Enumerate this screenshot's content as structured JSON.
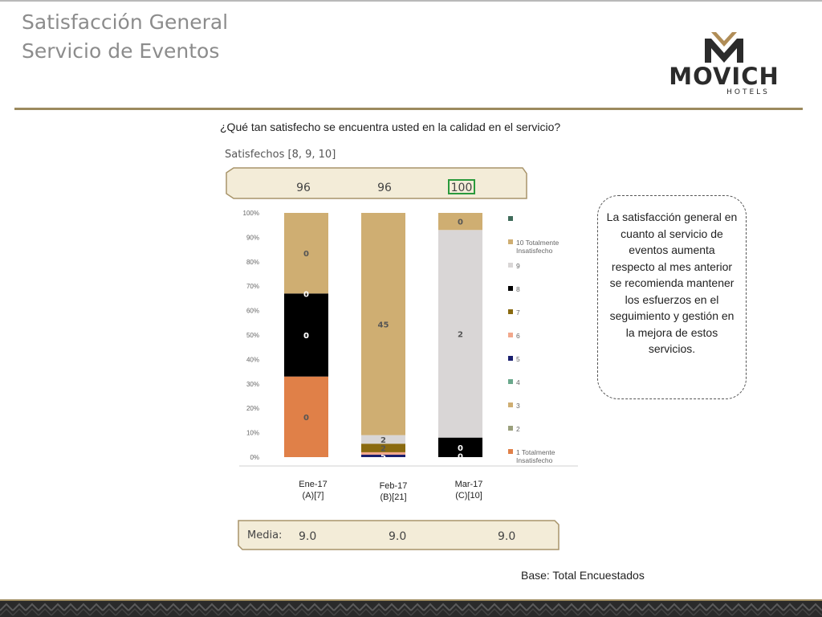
{
  "header": {
    "title_line1": "Satisfacción General",
    "title_line2": "Servicio de Eventos"
  },
  "logo": {
    "name": "MOVICH",
    "sub": "HOTELS",
    "colors": {
      "gold": "#b08d57",
      "dark": "#2b2b2b"
    }
  },
  "question": "¿Qué tan satisfecho se encuentra usted en la calidad en el servicio?",
  "satisfied": {
    "label": "Satisfechos [8, 9, 10]",
    "values": [
      "96",
      "96",
      "100"
    ]
  },
  "note": "La satisfacción general en cuanto al servicio de eventos aumenta respecto al mes anterior  se recomienda mantener los esfuerzos en el seguimiento y gestión en la mejora de estos servicios.",
  "media": {
    "label": "Media:",
    "values": [
      "9.0",
      "9.0",
      "9.0"
    ]
  },
  "base": "Base: Total Encuestados",
  "chart_data": {
    "type": "bar",
    "stacked": true,
    "x_categories": [
      {
        "line1": "Ene-17",
        "line2": "(A)[7]"
      },
      {
        "line1": "Feb-17",
        "line2": "(B)[21]"
      },
      {
        "line1": "Mar-17",
        "line2": "(C)[10]"
      }
    ],
    "y_ticks": [
      "0%",
      "10%",
      "20%",
      "30%",
      "40%",
      "50%",
      "60%",
      "70%",
      "80%",
      "90%",
      "100%"
    ],
    "ylim": [
      0,
      100
    ],
    "legend_position": "right",
    "legend": [
      {
        "label": "",
        "color": "#3f6b5a"
      },
      {
        "label": "10 Totalmente Insatisfecho",
        "color": "#cfae72"
      },
      {
        "label": "9",
        "color": "#d9d6d6"
      },
      {
        "label": "8",
        "color": "#000000"
      },
      {
        "label": "7",
        "color": "#8a6a10"
      },
      {
        "label": "6",
        "color": "#f2a88c"
      },
      {
        "label": "5",
        "color": "#1a1f6e"
      },
      {
        "label": "4",
        "color": "#6aa88c"
      },
      {
        "label": "3",
        "color": "#cfae72"
      },
      {
        "label": "2",
        "color": "#9aa07c"
      },
      {
        "label": "1 Totalmente Insatisfecho",
        "color": "#e08048"
      }
    ],
    "bars": [
      {
        "segments": [
          {
            "value": 33,
            "color": "#e08048",
            "label": "0"
          },
          {
            "value": 34,
            "color": "#000000",
            "label": "0"
          },
          {
            "value": 33,
            "color": "#cfae72",
            "label": "0"
          }
        ],
        "extra_labels": [
          {
            "at": 67,
            "text": "0"
          },
          {
            "at": 50,
            "text": "0"
          }
        ]
      },
      {
        "segments": [
          {
            "value": 1,
            "color": "#1a1f6e",
            "label": "5"
          },
          {
            "value": 1,
            "color": "#f2a88c",
            "label": ""
          },
          {
            "value": 3.5,
            "color": "#8a6a10",
            "label": "2"
          },
          {
            "value": 3.5,
            "color": "#d9d6d6",
            "label": "2"
          },
          {
            "value": 91,
            "color": "#cfae72",
            "label": "45"
          }
        ],
        "extra_labels": []
      },
      {
        "segments": [
          {
            "value": 8,
            "color": "#000000",
            "label": "0"
          },
          {
            "value": 85,
            "color": "#d9d6d6",
            "label": "2"
          },
          {
            "value": 7,
            "color": "#cfae72",
            "label": "0"
          }
        ],
        "extra_labels": [
          {
            "at": 0.5,
            "text": "0"
          }
        ]
      }
    ]
  }
}
